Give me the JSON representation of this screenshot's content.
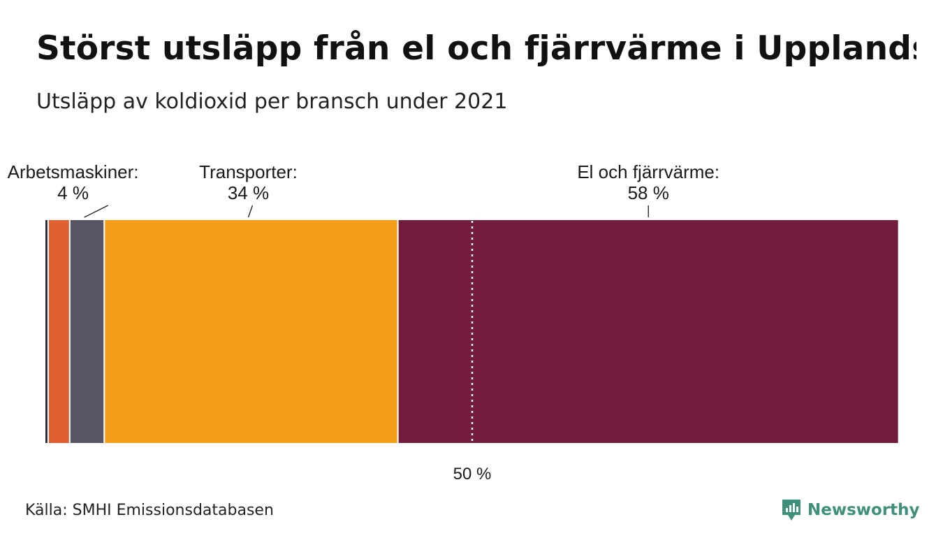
{
  "title": "Störst utsläpp från el och fjärrvärme i Upplands-Bro",
  "subtitle": "Utsläpp av koldioxid per bransch under 2021",
  "source": "Källa: SMHI Emissionsdatabasen",
  "brand": {
    "name": "Newsworthy",
    "color": "#3f8f7a"
  },
  "reference_label": "50 %",
  "chart_data": {
    "type": "bar",
    "orientation": "stacked-100-percent",
    "unit": "%",
    "segments": [
      {
        "label": "",
        "value": 0.4,
        "color": "#2b2838"
      },
      {
        "label": "",
        "value": 2.5,
        "color": "#e0612f"
      },
      {
        "label": "Arbetsmaskiner:",
        "value_label": "4 %",
        "value": 4,
        "color": "#575563"
      },
      {
        "label": "Transporter:",
        "value_label": "34 %",
        "value": 34,
        "color": "#f59e1a"
      },
      {
        "label": "El och fjärrvärme:",
        "value_label": "58 %",
        "value": 58,
        "color": "#711c3c"
      },
      {
        "label": "",
        "value": 0.1,
        "color": "#f1d3db"
      }
    ],
    "reference_line": {
      "value": 50,
      "style": "dotted"
    }
  }
}
